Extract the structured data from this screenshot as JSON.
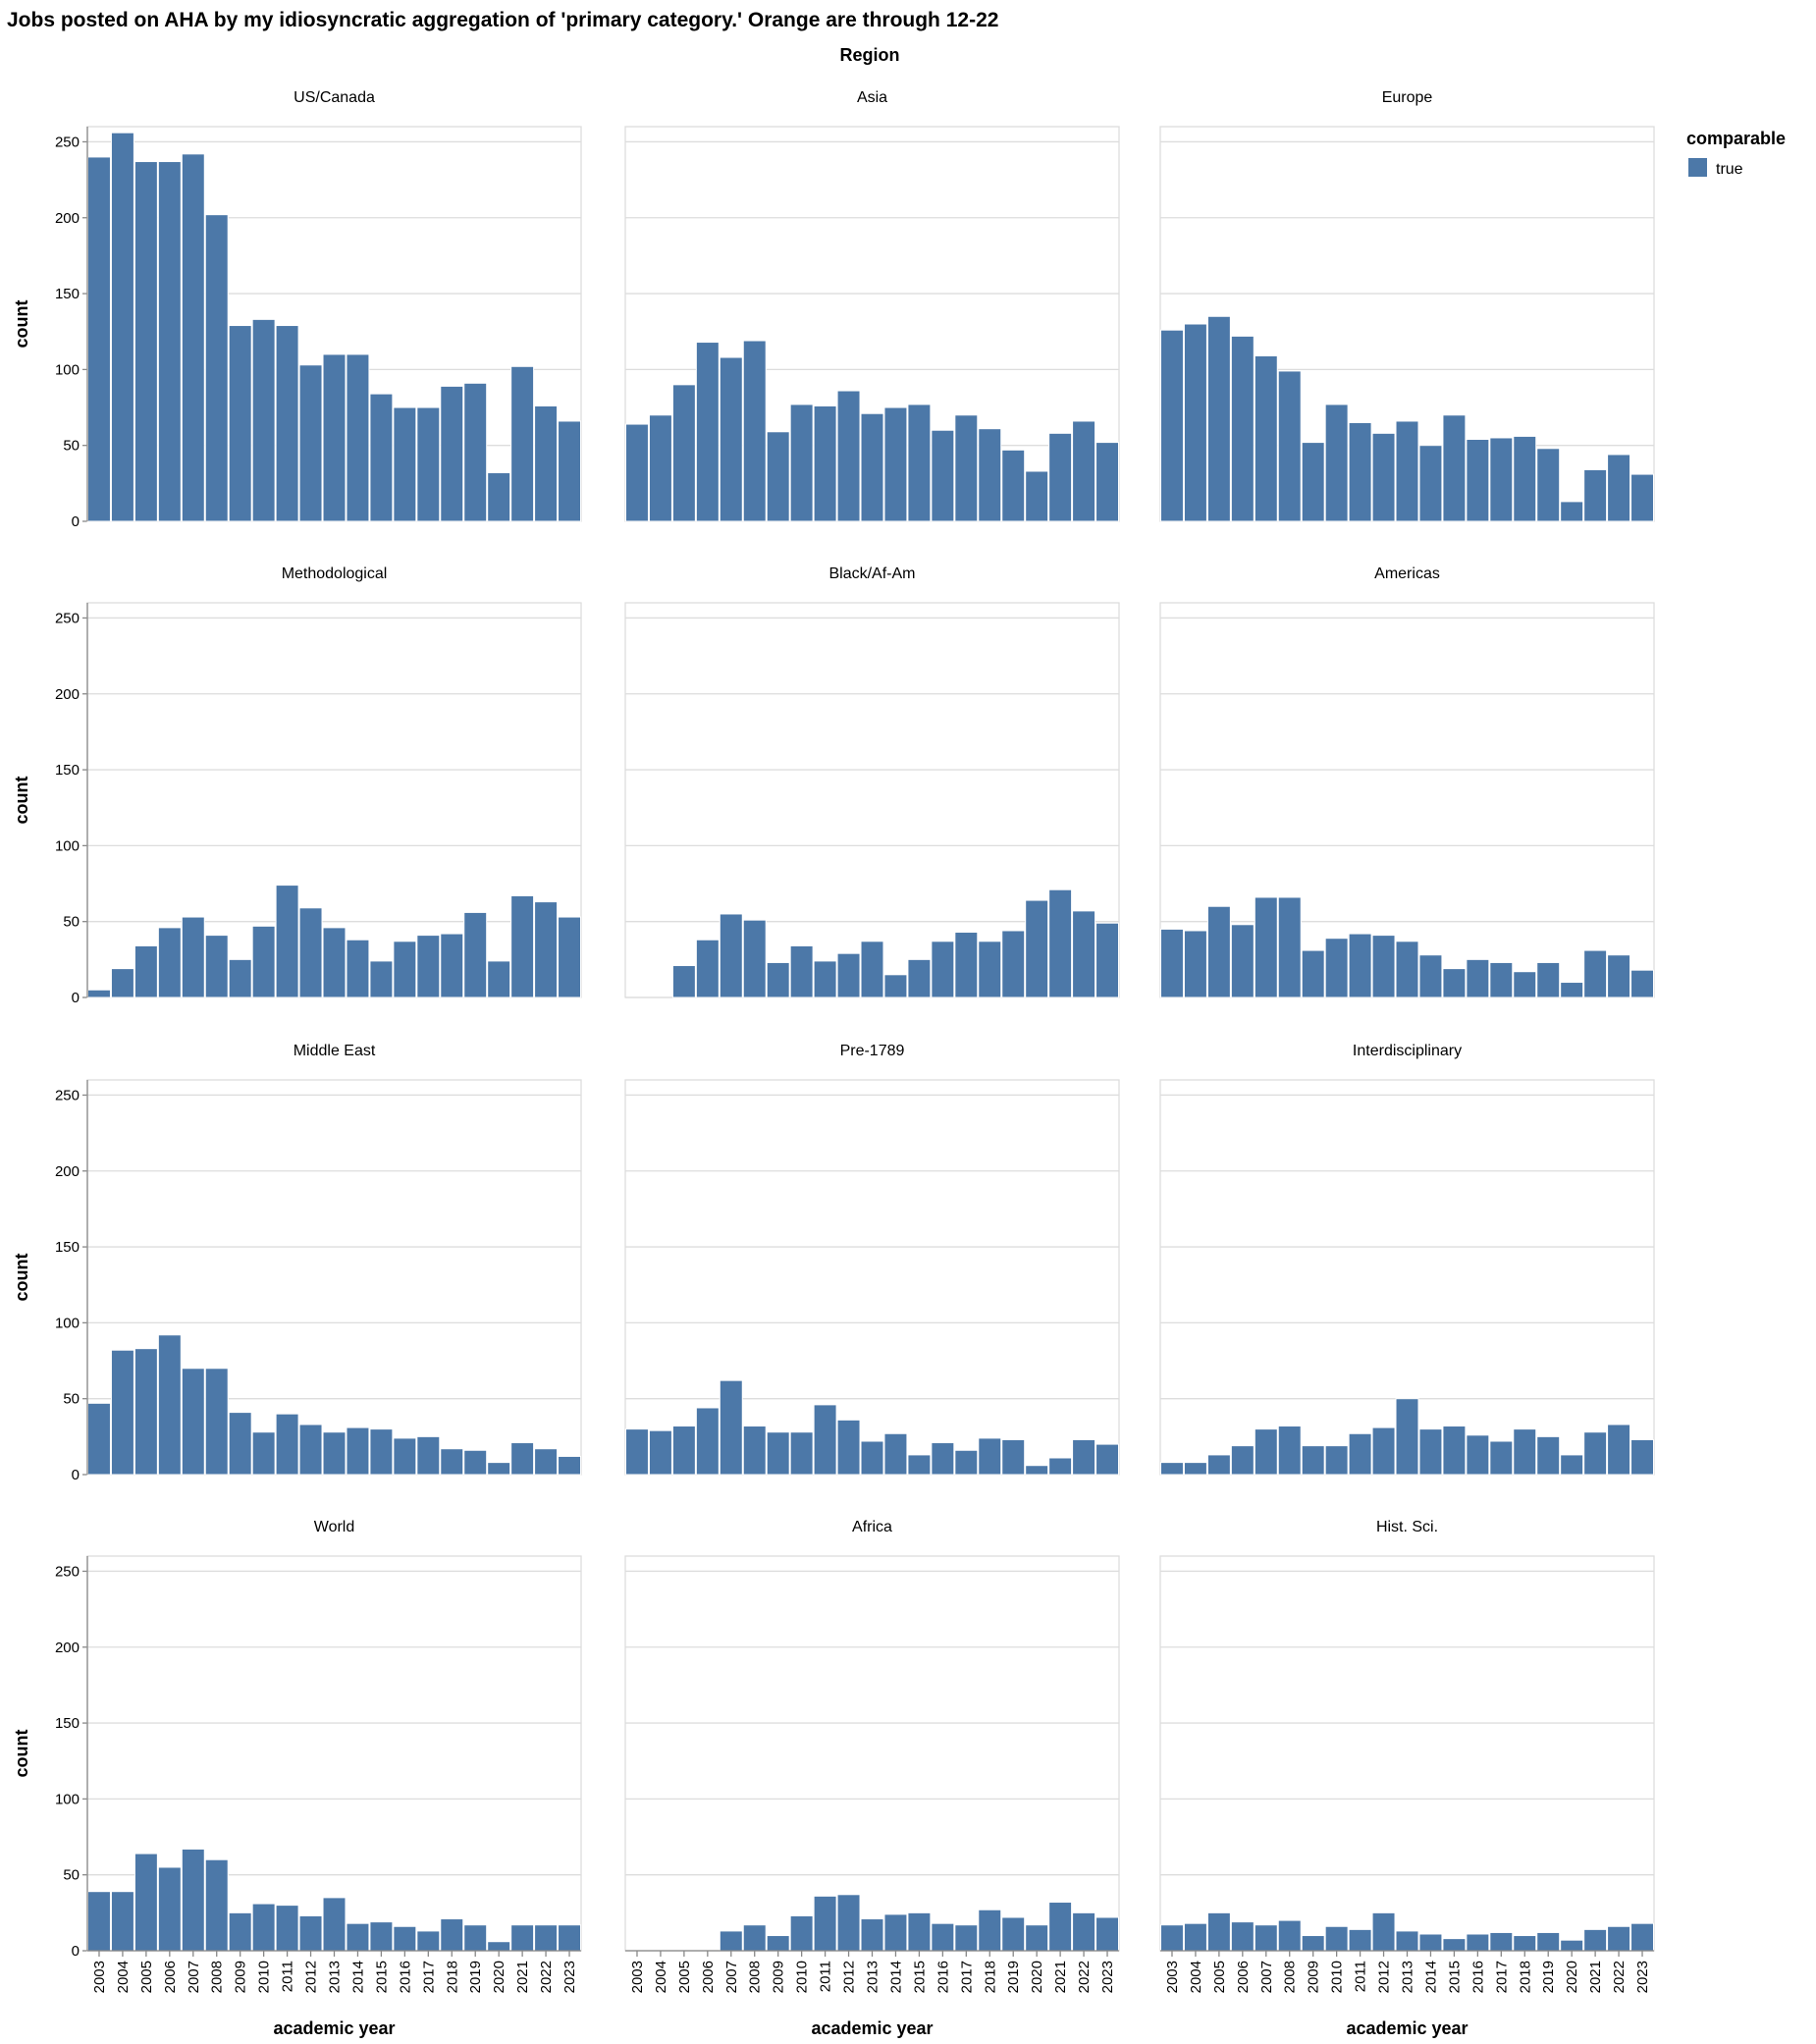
{
  "chart_data": {
    "type": "bar",
    "title": "Jobs posted on AHA by my idiosyncratic aggregation of 'primary category.' Orange are through 12-22",
    "facet_title": "Region",
    "xlabel": "academic year",
    "ylabel": "count",
    "ylim": [
      0,
      260
    ],
    "yticks": [
      0,
      50,
      100,
      150,
      200,
      250
    ],
    "grid": true,
    "legend": {
      "title": "comparable",
      "placement": "top-right",
      "entries": [
        {
          "label": "true",
          "color": "#4c78a8"
        }
      ]
    },
    "categories": [
      "2003",
      "2004",
      "2005",
      "2006",
      "2007",
      "2008",
      "2009",
      "2010",
      "2011",
      "2012",
      "2013",
      "2014",
      "2015",
      "2016",
      "2017",
      "2018",
      "2019",
      "2020",
      "2021",
      "2022",
      "2023"
    ],
    "panels": [
      {
        "name": "US/Canada",
        "values": [
          240,
          256,
          237,
          237,
          242,
          202,
          129,
          133,
          129,
          103,
          110,
          110,
          84,
          75,
          75,
          89,
          91,
          32,
          102,
          76,
          66
        ]
      },
      {
        "name": "Asia",
        "values": [
          64,
          70,
          90,
          118,
          108,
          119,
          59,
          77,
          76,
          86,
          71,
          75,
          77,
          60,
          70,
          61,
          47,
          33,
          58,
          66,
          52
        ]
      },
      {
        "name": "Europe",
        "values": [
          126,
          130,
          135,
          122,
          109,
          99,
          52,
          77,
          65,
          58,
          66,
          50,
          70,
          54,
          55,
          56,
          48,
          13,
          34,
          44,
          31
        ]
      },
      {
        "name": "Methodological",
        "values": [
          5,
          19,
          34,
          46,
          53,
          41,
          25,
          47,
          74,
          59,
          46,
          38,
          24,
          37,
          41,
          42,
          56,
          24,
          67,
          63,
          53
        ]
      },
      {
        "name": "Black/Af-Am",
        "values": [
          0,
          0,
          21,
          38,
          55,
          51,
          23,
          34,
          24,
          29,
          37,
          15,
          25,
          37,
          43,
          37,
          44,
          64,
          71,
          57,
          49
        ]
      },
      {
        "name": "Americas",
        "values": [
          45,
          44,
          60,
          48,
          66,
          66,
          31,
          39,
          42,
          41,
          37,
          28,
          19,
          25,
          23,
          17,
          23,
          10,
          31,
          28,
          18
        ]
      },
      {
        "name": "Middle East",
        "values": [
          47,
          82,
          83,
          92,
          70,
          70,
          41,
          28,
          40,
          33,
          28,
          31,
          30,
          24,
          25,
          17,
          16,
          8,
          21,
          17,
          12
        ]
      },
      {
        "name": "Pre-1789",
        "values": [
          30,
          29,
          32,
          44,
          62,
          32,
          28,
          28,
          46,
          36,
          22,
          27,
          13,
          21,
          16,
          24,
          23,
          6,
          11,
          23,
          20
        ]
      },
      {
        "name": "Interdisciplinary",
        "values": [
          8,
          8,
          13,
          19,
          30,
          32,
          19,
          19,
          27,
          31,
          50,
          30,
          32,
          26,
          22,
          30,
          25,
          13,
          28,
          33,
          23
        ]
      },
      {
        "name": "World",
        "values": [
          39,
          39,
          64,
          55,
          67,
          60,
          25,
          31,
          30,
          23,
          35,
          18,
          19,
          16,
          13,
          21,
          17,
          6,
          17,
          17,
          17
        ]
      },
      {
        "name": "Africa",
        "values": [
          0,
          0,
          0,
          0,
          13,
          17,
          10,
          23,
          36,
          37,
          21,
          24,
          25,
          18,
          17,
          27,
          22,
          17,
          32,
          25,
          22
        ]
      },
      {
        "name": "Hist. Sci.",
        "values": [
          17,
          18,
          25,
          19,
          17,
          20,
          10,
          16,
          14,
          25,
          13,
          11,
          8,
          11,
          12,
          10,
          12,
          7,
          14,
          16,
          18
        ]
      }
    ]
  }
}
